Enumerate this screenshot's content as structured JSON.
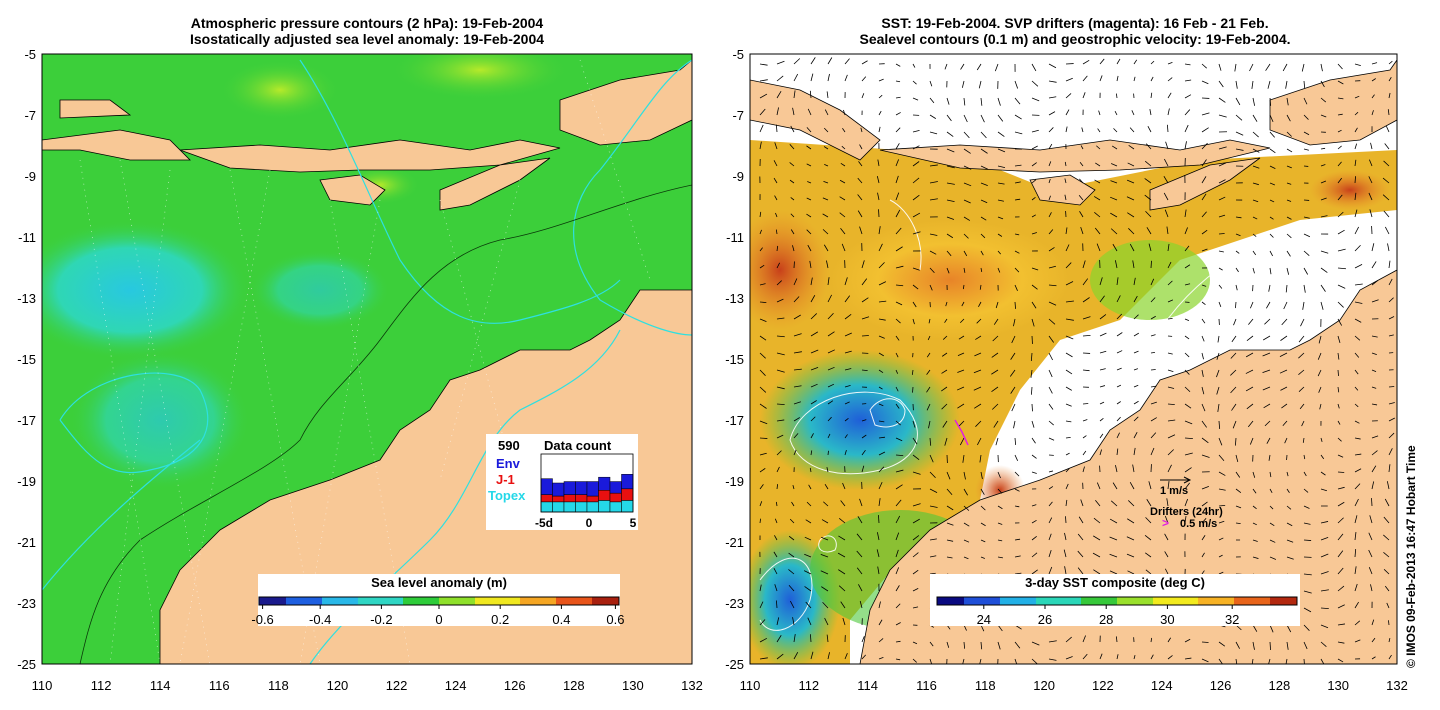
{
  "left_panel": {
    "title_line1": "Atmospheric pressure contours (2 hPa): 19-Feb-2004",
    "title_line2": "Isostatically adjusted sea level anomaly: 19-Feb-2004",
    "x_ticks": [
      "110",
      "112",
      "114",
      "116",
      "118",
      "120",
      "122",
      "124",
      "126",
      "128",
      "130",
      "132"
    ],
    "y_ticks": [
      "-5",
      "-7",
      "-9",
      "-11",
      "-13",
      "-15",
      "-17",
      "-19",
      "-21",
      "-23",
      "-25"
    ],
    "colorbar": {
      "label": "Sea level anomaly (m)",
      "ticks": [
        "-0.6",
        "-0.4",
        "-0.2",
        "0",
        "0.2",
        "0.4",
        "0.6"
      ],
      "colors": [
        "#1a1a8c",
        "#1e5fe0",
        "#29b8e8",
        "#2fd6c4",
        "#2ecc3a",
        "#8fe02a",
        "#f0e820",
        "#f5a623",
        "#e8541a",
        "#a8200f"
      ]
    },
    "data_count": {
      "title": "Data count",
      "total": "590",
      "legend": [
        {
          "name": "Env",
          "color": "#1a1adb"
        },
        {
          "name": "J-1",
          "color": "#e81010"
        },
        {
          "name": "Topex",
          "color": "#25d8e8"
        }
      ],
      "x_ticks": [
        "-5d",
        "0",
        "5"
      ],
      "bars": [
        {
          "topex": 0.35,
          "j1": 0.25,
          "env": 0.55
        },
        {
          "topex": 0.35,
          "j1": 0.2,
          "env": 0.45
        },
        {
          "topex": 0.35,
          "j1": 0.25,
          "env": 0.45
        },
        {
          "topex": 0.35,
          "j1": 0.25,
          "env": 0.45
        },
        {
          "topex": 0.35,
          "j1": 0.2,
          "env": 0.5
        },
        {
          "topex": 0.4,
          "j1": 0.35,
          "env": 0.45
        },
        {
          "topex": 0.35,
          "j1": 0.3,
          "env": 0.4
        },
        {
          "topex": 0.4,
          "j1": 0.4,
          "env": 0.5
        }
      ]
    }
  },
  "right_panel": {
    "title_line1": "SST: 19-Feb-2004. SVP drifters (magenta): 16 Feb - 21 Feb.",
    "title_line2": "Sealevel contours (0.1 m) and geostrophic velocity: 19-Feb-2004.",
    "x_ticks": [
      "110",
      "112",
      "114",
      "116",
      "118",
      "120",
      "122",
      "124",
      "126",
      "128",
      "130",
      "132"
    ],
    "y_ticks": [
      "-5",
      "-7",
      "-9",
      "-11",
      "-13",
      "-15",
      "-17",
      "-19",
      "-21",
      "-23",
      "-25"
    ],
    "colorbar": {
      "label": "3-day SST composite (deg C)",
      "ticks": [
        "24",
        "26",
        "28",
        "30",
        "32"
      ],
      "colors": [
        "#0a0a80",
        "#1f4fd8",
        "#22b0e6",
        "#2ad6b8",
        "#36c83a",
        "#9ae02c",
        "#f2ea1e",
        "#f7b224",
        "#e8641a",
        "#b3280f"
      ]
    },
    "velocity_scale": "1 m/s",
    "drifters_label": "Drifters (24hr)",
    "drifter_marker": ">",
    "drifter_speed": "0.5 m/s"
  },
  "credit": "© IMOS 09-Feb-2013 16:47 Hobart Time",
  "colors": {
    "land": "#f8c896",
    "ocean_green": "#3ccf3a",
    "coast_line": "#000000",
    "contour_cyan": "#2ee0e0",
    "colorbar_frame": "#000000"
  }
}
